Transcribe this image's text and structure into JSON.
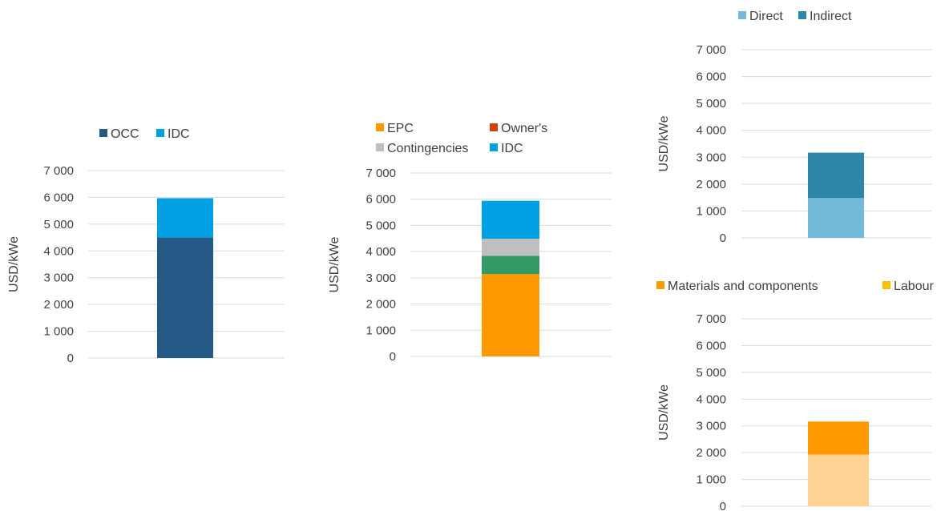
{
  "chart_data": [
    {
      "type": "bar",
      "stacked": true,
      "categories": [
        ""
      ],
      "series": [
        {
          "name": "OCC",
          "values": [
            4500
          ],
          "color": "#255A86"
        },
        {
          "name": "IDC",
          "values": [
            1470
          ],
          "color": "#00A0E3"
        }
      ],
      "ylabel": "USD/kWe",
      "ylim": [
        0,
        7000
      ],
      "yticks": [
        "0",
        "1 000",
        "2 000",
        "3 000",
        "4 000",
        "5 000",
        "6 000",
        "7 000"
      ],
      "grid": true,
      "legend": "top-left"
    },
    {
      "type": "bar",
      "stacked": true,
      "categories": [
        ""
      ],
      "series": [
        {
          "name": "EPC",
          "values": [
            3140
          ],
          "color": "#FF9900"
        },
        {
          "name": "Owner's",
          "values": [
            700
          ],
          "color": "#339966"
        },
        {
          "name": "Contingencies",
          "values": [
            650
          ],
          "color": "#BFBFBF"
        },
        {
          "name": "IDC",
          "values": [
            1450
          ],
          "color": "#00A0E3"
        }
      ],
      "legend_colors": {
        "Owner's": "#D2400A"
      },
      "ylabel": "USD/kWe",
      "ylim": [
        0,
        7000
      ],
      "yticks": [
        "0",
        "1 000",
        "2 000",
        "3 000",
        "4 000",
        "5 000",
        "6 000",
        "7 000"
      ],
      "grid": true,
      "legend": "top"
    },
    {
      "type": "bar",
      "stacked": true,
      "categories": [
        ""
      ],
      "series": [
        {
          "name": "Direct",
          "values": [
            1480
          ],
          "color": "#74BBDB"
        },
        {
          "name": "Indirect",
          "values": [
            1690
          ],
          "color": "#2E86A8"
        }
      ],
      "ylabel": "USD/kWe",
      "ylim": [
        0,
        7000
      ],
      "yticks": [
        "0",
        "1 000",
        "2 000",
        "3 000",
        "4 000",
        "5 000",
        "6 000",
        "7 000"
      ],
      "grid": true,
      "legend": "top"
    },
    {
      "type": "bar",
      "stacked": true,
      "categories": [
        ""
      ],
      "series": [
        {
          "name": "Materials and components",
          "values": [
            1230
          ],
          "color": "#FF9900"
        },
        {
          "name": "Labour",
          "values": [
            1930
          ],
          "color": "#FFD393"
        }
      ],
      "legend_colors": {
        "Labour": "#FFC000"
      },
      "stack_order": [
        "Labour",
        "Materials and components"
      ],
      "ylabel": "USD/kWe",
      "ylim": [
        0,
        7000
      ],
      "yticks": [
        "0",
        "1 000",
        "2 000",
        "3 000",
        "4 000",
        "5 000",
        "6 000",
        "7 000"
      ],
      "grid": true,
      "legend": "top"
    }
  ]
}
